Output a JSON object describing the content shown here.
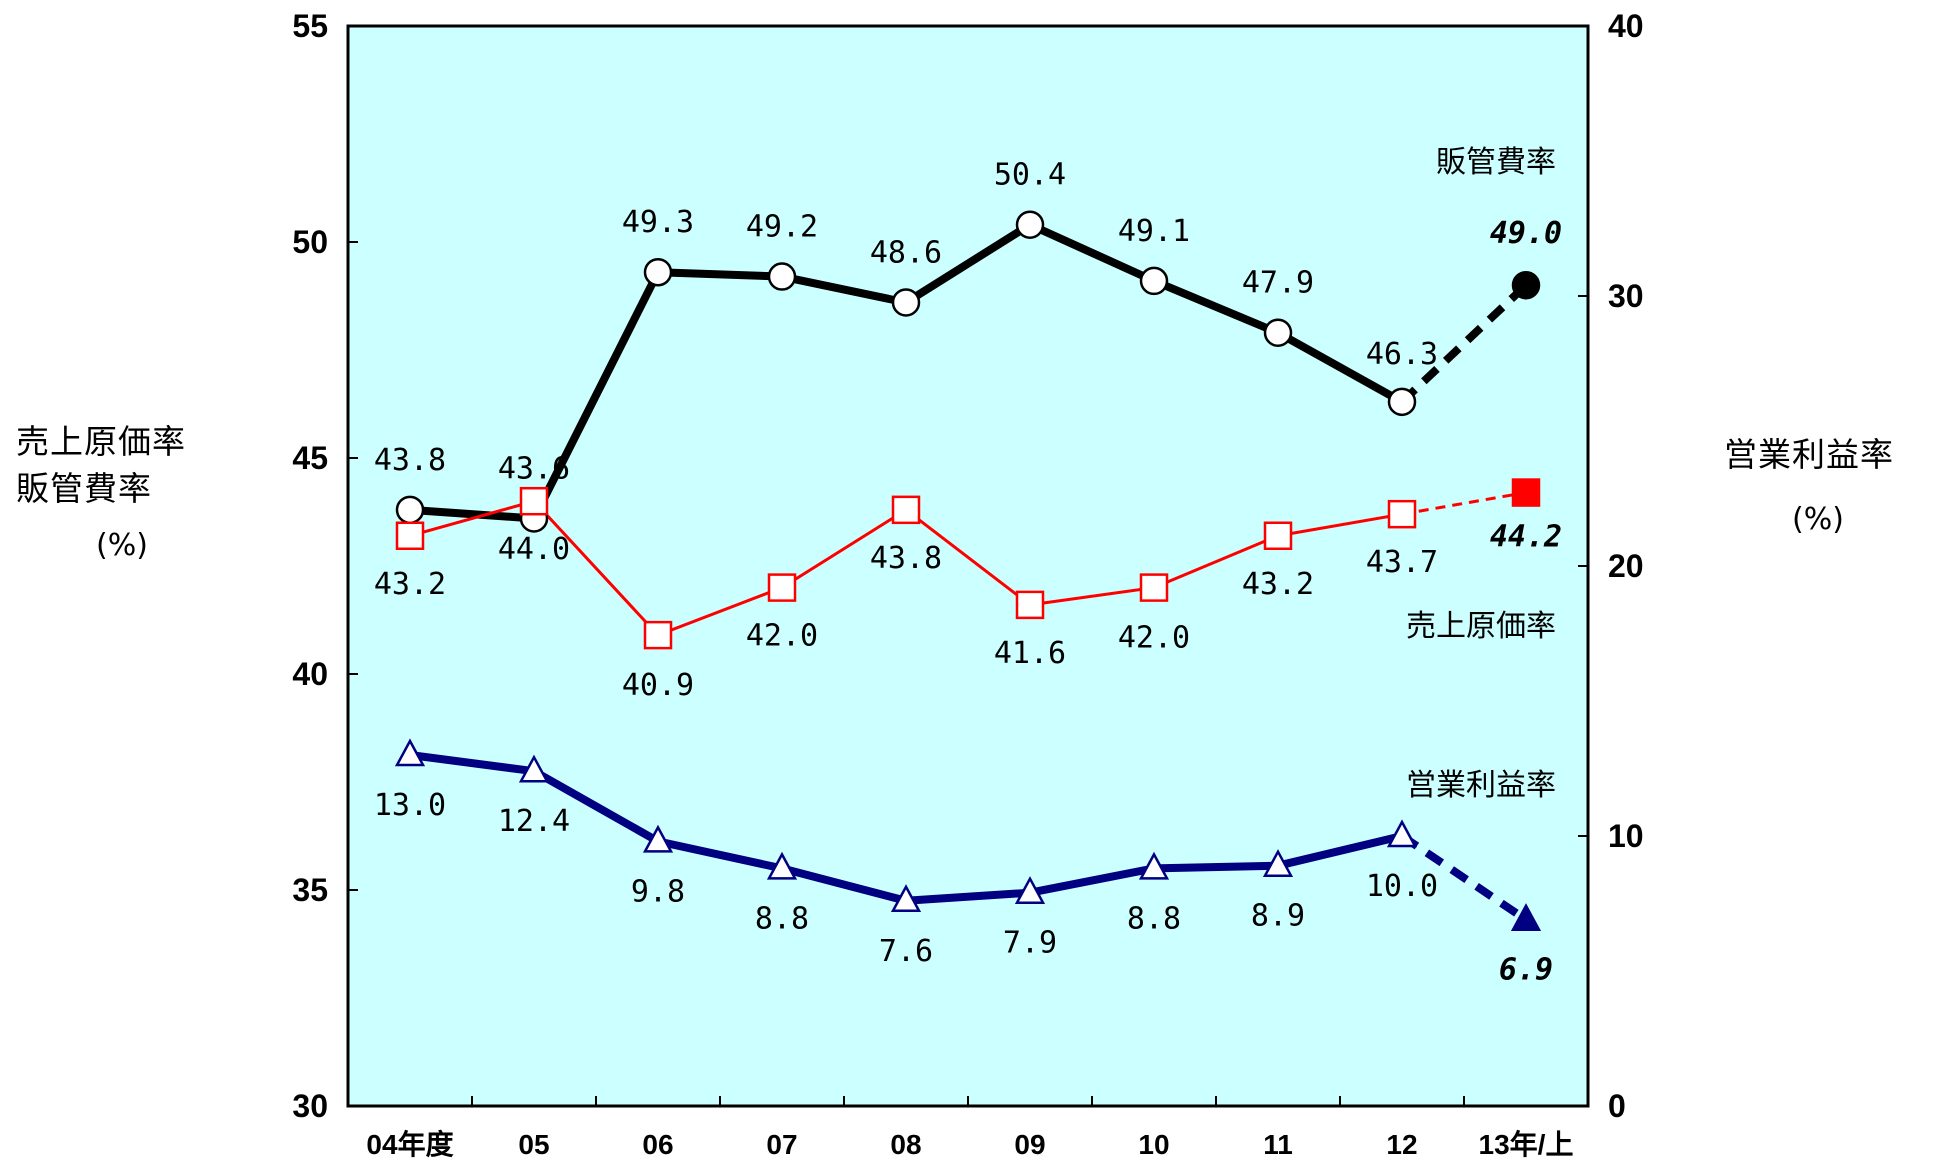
{
  "chart_data": {
    "type": "line",
    "categories": [
      "04年度",
      "05",
      "06",
      "07",
      "08",
      "09",
      "10",
      "11",
      "12",
      "13年/上"
    ],
    "left_axis": {
      "label_lines": [
        "売上原価率",
        "販管費率"
      ],
      "unit": "(%)",
      "ylim": [
        30,
        55
      ],
      "ticks": [
        "30",
        "35",
        "40",
        "45",
        "50",
        "55"
      ]
    },
    "right_axis": {
      "label_lines": [
        "営業利益率"
      ],
      "unit": "(%)",
      "ylim": [
        0,
        40
      ],
      "ticks": [
        "0",
        "10",
        "20",
        "30",
        "40"
      ]
    },
    "series": [
      {
        "name": "販管費率",
        "axis": "left",
        "color": "#000000",
        "values": [
          43.8,
          43.6,
          49.3,
          49.2,
          48.6,
          50.4,
          49.1,
          47.9,
          46.3,
          49.0
        ],
        "labels": [
          "43.8",
          "43.6",
          "49.3",
          "49.2",
          "48.6",
          "50.4",
          "49.1",
          "47.9",
          "46.3",
          "49.0"
        ]
      },
      {
        "name": "売上原価率",
        "axis": "left",
        "color": "#ff0000",
        "values": [
          43.2,
          44.0,
          40.9,
          42.0,
          43.8,
          41.6,
          42.0,
          43.2,
          43.7,
          44.2
        ],
        "labels": [
          "43.2",
          "44.0",
          "40.9",
          "42.0",
          "43.8",
          "41.6",
          "42.0",
          "43.2",
          "43.7",
          "44.2"
        ]
      },
      {
        "name": "営業利益率",
        "axis": "right",
        "color": "#000080",
        "values": [
          13.0,
          12.4,
          9.8,
          8.8,
          7.6,
          7.9,
          8.8,
          8.9,
          10.0,
          6.9
        ],
        "labels": [
          "13.0",
          "12.4",
          "9.8",
          "8.8",
          "7.6",
          "7.9",
          "8.8",
          "8.9",
          "10.0",
          "6.9"
        ]
      }
    ],
    "plot_background": "#ccffff",
    "grid": false
  }
}
